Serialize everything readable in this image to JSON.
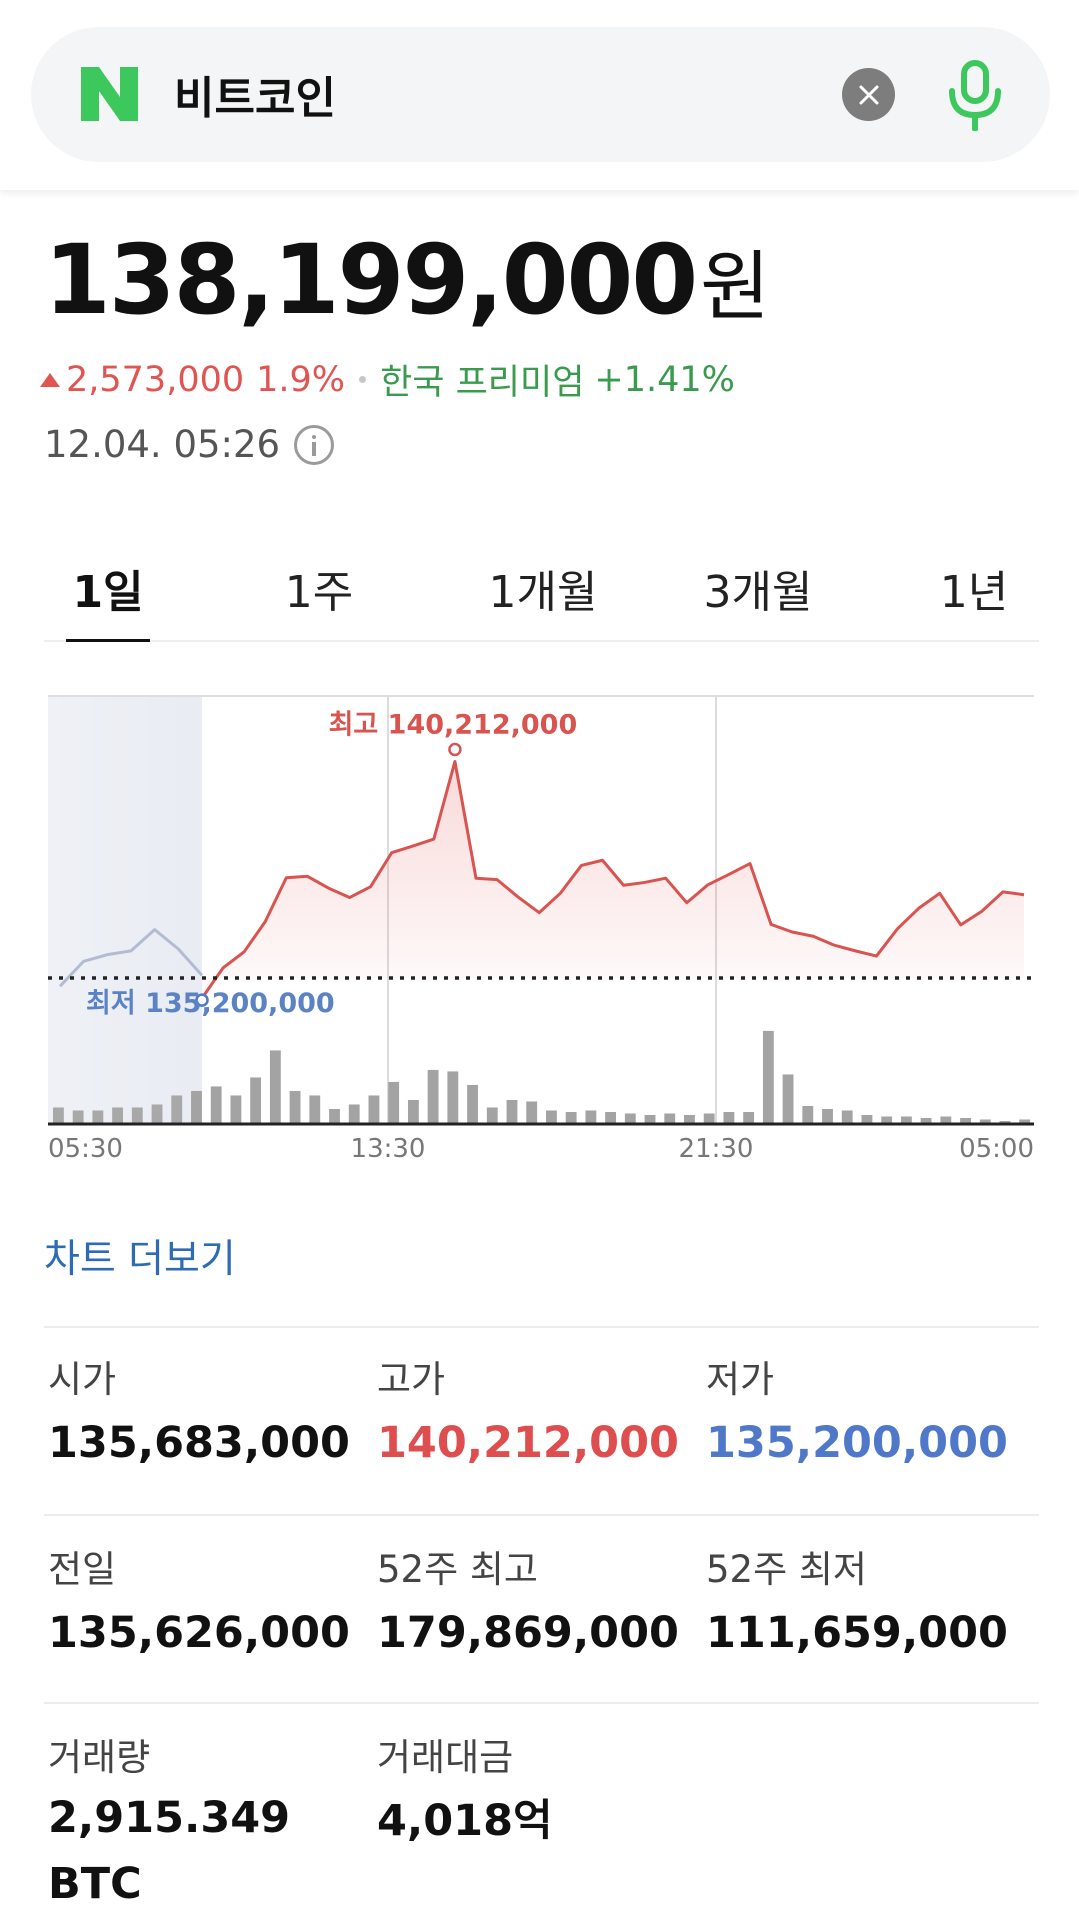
{
  "search": {
    "query": "비트코인"
  },
  "price": {
    "value": "138,199,000",
    "unit": "원",
    "change_amount": "2,573,000",
    "change_pct": "1.9%",
    "premium_label": "한국 프리미엄",
    "premium_value": "+1.41%",
    "timestamp": "12.04. 05:26"
  },
  "tabs": [
    {
      "label": "1일",
      "active": true
    },
    {
      "label": "1주",
      "active": false
    },
    {
      "label": "1개월",
      "active": false
    },
    {
      "label": "3개월",
      "active": false
    },
    {
      "label": "1년",
      "active": false
    }
  ],
  "chart_data": {
    "type": "line",
    "title": "",
    "xlabel": "",
    "ylabel": "",
    "x_ticks": [
      "05:30",
      "13:30",
      "21:30",
      "05:00"
    ],
    "baseline": 135626000,
    "high_label": "최고 140,212,000",
    "low_label": "최저 135,200,000",
    "ylim": [
      134100000,
      141600000
    ],
    "prior_series": [
      135450000,
      135980000,
      136120000,
      136200000,
      136650000,
      136240000,
      135680000
    ],
    "series": [
      135200000,
      135840000,
      136180000,
      136820000,
      137750000,
      137780000,
      137530000,
      137330000,
      137560000,
      138280000,
      138420000,
      138570000,
      140212000,
      137740000,
      137710000,
      137340000,
      137010000,
      137420000,
      138010000,
      138120000,
      137590000,
      137650000,
      137740000,
      137220000,
      137600000,
      137820000,
      138050000,
      136760000,
      136600000,
      136510000,
      136320000,
      136200000,
      136090000,
      136670000,
      137100000,
      137420000,
      136750000,
      137040000,
      137450000,
      137390000
    ],
    "volume": [
      0.11,
      0.09,
      0.09,
      0.11,
      0.11,
      0.13,
      0.19,
      0.22,
      0.25,
      0.19,
      0.31,
      0.49,
      0.22,
      0.19,
      0.1,
      0.13,
      0.19,
      0.28,
      0.16,
      0.36,
      0.35,
      0.26,
      0.11,
      0.16,
      0.15,
      0.09,
      0.08,
      0.09,
      0.08,
      0.07,
      0.06,
      0.07,
      0.06,
      0.07,
      0.08,
      0.08,
      0.62,
      0.33,
      0.12,
      0.1,
      0.09,
      0.06,
      0.05,
      0.05,
      0.04,
      0.05,
      0.04,
      0.03,
      0.02,
      0.03
    ]
  },
  "chart_more": "차트 더보기",
  "stats": {
    "open": {
      "label": "시가",
      "value": "135,683,000"
    },
    "high": {
      "label": "고가",
      "value": "140,212,000"
    },
    "low": {
      "label": "저가",
      "value": "135,200,000"
    },
    "prev": {
      "label": "전일",
      "value": "135,626,000"
    },
    "w52_high": {
      "label": "52주 최고",
      "value": "179,869,000"
    },
    "w52_low": {
      "label": "52주 최저",
      "value": "111,659,000"
    },
    "volume": {
      "label": "거래량",
      "value": "2,915.349 BTC"
    },
    "turnover": {
      "label": "거래대금",
      "value": "4,018억"
    }
  },
  "colors": {
    "up": "#e05552",
    "down": "#4f78c9",
    "premium": "#3a9a4e",
    "link": "#2e6bb3"
  }
}
